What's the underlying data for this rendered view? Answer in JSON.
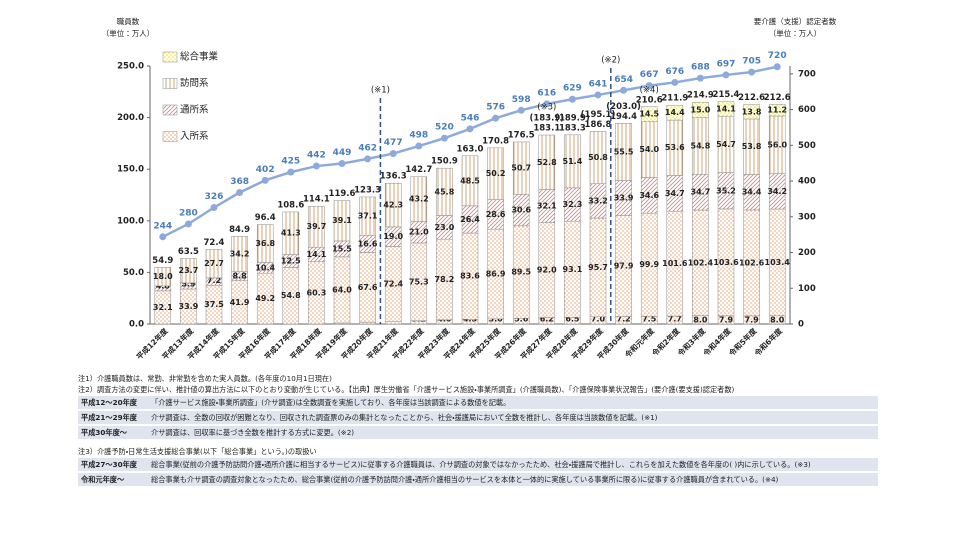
{
  "chart_data": {
    "type": "bar",
    "stacked": true,
    "y_label": "職員数\n（単位：万人）",
    "y2_label": "要介護（支援）認定者数\n（単位：万人）",
    "categories": [
      "平成12年度",
      "平成13年度",
      "平成14年度",
      "平成15年度",
      "平成16年度",
      "平成17年度",
      "平成18年度",
      "平成19年度",
      "平成20年度",
      "平成21年度",
      "平成22年度",
      "平成23年度",
      "平成24年度",
      "平成25年度",
      "平成26年度",
      "平成27年度",
      "平成28年度",
      "平成29年度",
      "平成30年度",
      "令和元年度",
      "令和2年度",
      "令和3年度",
      "令和4年度",
      "令和5年度",
      "令和6年度"
    ],
    "ylim": [
      0,
      250
    ],
    "yticks": [
      {
        "value": 0,
        "label": "0.0"
      },
      {
        "value": 50,
        "label": "50.0"
      },
      {
        "value": 100,
        "label": "100.0"
      },
      {
        "value": 150,
        "label": "150.0"
      },
      {
        "value": 200,
        "label": "200.0"
      },
      {
        "value": 250,
        "label": "250.0"
      }
    ],
    "y2lim": [
      0,
      722
    ],
    "y2ticks": [
      0,
      100,
      200,
      300,
      400,
      500,
      600,
      700
    ],
    "series": [
      {
        "color": "#e8b48c",
        "pattern": "dots",
        "values": [
          null,
          null,
          null,
          null,
          null,
          null,
          null,
          1.0,
          1.8,
          2.7,
          3.2,
          4.0,
          4.5,
          5.0,
          5.6,
          6.2,
          6.5,
          7.0,
          7.2,
          7.5,
          7.7,
          8.0,
          7.9,
          7.9,
          8.0
        ],
        "value_labels": [
          null,
          null,
          null,
          null,
          null,
          null,
          null,
          "1.0",
          "1.8",
          "2.7",
          "3.2",
          "4.0",
          "4.5",
          "5.0",
          "5.6",
          "6.2",
          "6.5",
          "7.0",
          "7.2",
          "7.5",
          "7.7",
          "8.0",
          "7.9",
          "7.9",
          "8.0"
        ]
      },
      {
        "name": "入所系",
        "color": "#f0a46c",
        "pattern": "dots",
        "values": [
          32.1,
          33.9,
          37.5,
          41.9,
          49.2,
          54.8,
          60.3,
          64.0,
          67.6,
          72.4,
          75.3,
          78.2,
          83.6,
          86.9,
          89.5,
          92.0,
          93.1,
          95.7,
          97.9,
          99.9,
          101.6,
          102.4,
          103.6,
          102.6,
          103.4
        ],
        "value_labels": [
          "32.1",
          "33.9",
          "37.5",
          "41.9",
          "49.2",
          "54.8",
          "60.3",
          "64.0",
          "67.6",
          "72.4",
          "75.3",
          "78.2",
          "83.6",
          "86.9",
          "89.5",
          "92.0",
          "93.1",
          "95.7",
          "97.9",
          "99.9",
          "101.6",
          "102.4",
          "103.6",
          "102.6",
          "103.4"
        ]
      },
      {
        "name": "通所系",
        "color": "#c98f8f",
        "pattern": "diagonal",
        "values": [
          4.8,
          5.9,
          7.2,
          8.8,
          10.4,
          12.5,
          14.1,
          15.5,
          16.6,
          19.0,
          21.0,
          23.0,
          26.4,
          28.6,
          30.6,
          32.1,
          32.3,
          33.2,
          33.9,
          34.6,
          34.7,
          34.7,
          35.2,
          34.4,
          34.2
        ],
        "value_labels": [
          "4.8",
          "5.9",
          "7.2",
          "8.8",
          "10.4",
          "12.5",
          "14.1",
          "15.5",
          "16.6",
          "19.0",
          "21.0",
          "23.0",
          "26.4",
          "28.6",
          "30.6",
          "32.1",
          "32.3",
          "33.2",
          "33.9",
          "34.6",
          "34.7",
          "34.7",
          "35.2",
          "34.4",
          "34.2"
        ]
      },
      {
        "name": "訪問系",
        "color": "#d4a574",
        "pattern": "vertical",
        "values": [
          18.0,
          23.7,
          27.7,
          34.2,
          36.8,
          41.3,
          39.7,
          39.1,
          37.1,
          42.3,
          43.2,
          45.8,
          48.5,
          50.2,
          50.7,
          52.8,
          51.4,
          50.8,
          55.5,
          54.0,
          53.6,
          54.8,
          54.7,
          53.8,
          56.0
        ],
        "value_labels": [
          "18.0",
          "23.7",
          "27.7",
          "34.2",
          "36.8",
          "41.3",
          "39.7",
          "39.1",
          "37.1",
          "42.3",
          "43.2",
          "45.8",
          "48.5",
          "50.2",
          "50.7",
          "52.8",
          "51.4",
          "50.8",
          "55.5",
          "54.0",
          "53.6",
          "54.8",
          "54.7",
          "53.8",
          "56.0"
        ]
      },
      {
        "name": "総合事業",
        "color": "#f2e600",
        "pattern": "dots",
        "values": [
          null,
          null,
          null,
          null,
          null,
          null,
          null,
          null,
          null,
          null,
          null,
          null,
          null,
          null,
          null,
          null,
          null,
          null,
          null,
          14.5,
          14.4,
          15.0,
          14.1,
          13.8,
          11.2
        ],
        "value_labels": [
          null,
          null,
          null,
          null,
          null,
          null,
          null,
          null,
          null,
          null,
          null,
          null,
          null,
          null,
          null,
          null,
          null,
          null,
          null,
          "14.5",
          "14.4",
          "15.0",
          "14.1",
          "13.8",
          "11.2"
        ]
      }
    ],
    "totals": {
      "values": [
        54.9,
        63.5,
        72.4,
        84.9,
        96.4,
        108.6,
        114.1,
        119.6,
        123.3,
        136.3,
        142.7,
        150.9,
        163.0,
        170.8,
        176.5,
        183.1,
        183.3,
        186.8,
        194.4,
        210.6,
        211.9,
        214.9,
        215.4,
        212.6,
        212.6
      ],
      "value_labels": [
        "54.9",
        "63.5",
        "72.4",
        "84.9",
        "96.4",
        "108.6",
        "114.1",
        "119.6",
        "123.3",
        "136.3",
        "142.7",
        "150.9",
        "163.0",
        "170.8",
        "176.5",
        "183.1",
        "183.3",
        "186.8",
        "194.4",
        "210.6",
        "211.9",
        "214.9",
        "215.4",
        "212.6",
        "212.6"
      ]
    },
    "adjusted_totals": {
      "values": [
        null,
        null,
        null,
        null,
        null,
        null,
        null,
        null,
        null,
        null,
        null,
        null,
        null,
        null,
        null,
        183.9,
        189.9,
        195.1,
        203.0,
        null,
        null,
        null,
        null,
        null,
        null
      ],
      "value_labels": [
        null,
        null,
        null,
        null,
        null,
        null,
        null,
        null,
        null,
        null,
        null,
        null,
        null,
        null,
        null,
        "(183.9)",
        "(189.9)",
        "(195.1)",
        "(203.0)",
        null,
        null,
        null,
        null,
        null,
        null
      ]
    },
    "line": {
      "type": "line",
      "axis": "y2",
      "color": "#8eaadb",
      "label_color": "#4a7ebb",
      "values": [
        244,
        280,
        326,
        368,
        402,
        425,
        442,
        449,
        462,
        477,
        498,
        520,
        546,
        576,
        598,
        616,
        629,
        641,
        654,
        667,
        676,
        688,
        697,
        705,
        720
      ]
    },
    "dividers": [
      {
        "label": "(※1)",
        "before": "平成21年度"
      },
      {
        "label": "(※2)",
        "before": "平成30年度"
      }
    ],
    "markers": [
      {
        "label": "(※3)",
        "at": "平成27年度"
      },
      {
        "label": "(※4)",
        "at": "令和元年度"
      }
    ],
    "legend": "top-left"
  },
  "notes": {
    "note1": "注1）介護職員数は、常勤、非常勤を含めた実人員数。(各年度の10月1日現在)",
    "note2": "注2）調査方法の変更に伴い、推計値の算出方法に以下のとおり変動が生じている。【出典】厚生労働省「介護サービス施設・事業所調査」(介護職員数)、「介護保険事業状況報告」(要介護(要支援)認定者数)",
    "table1": [
      [
        "平成12～20年度",
        "「介護サービス施設・事業所調査」(介サ調査)は全数調査を実施しており、各年度は当該調査による数値を記載。"
      ],
      [
        "平成21～29年度",
        "介サ調査は、全数の回収が困難となり、回収された調査票のみの集計となったことから、社会・援護局において全数を推計し、各年度は当該数値を記載。(※1)"
      ],
      [
        "平成30年度～",
        "介サ調査は、回収率に基づき全数を推計する方式に変更。(※2)"
      ]
    ],
    "note3": "注3）介護予防・日常生活支援総合事業(以下「総合事業」という。)の取扱い",
    "table2": [
      [
        "平成27～30年度",
        "総合事業(従前の介護予防訪問介護・通所介護に相当するサービス)に従事する介護職員は、介サ調査の対象ではなかったため、社会・援護局で推計し、これらを加えた数値を各年度の( )内に示している。(※3)"
      ],
      [
        "令和元年度～",
        "総合事業も介サ調査の調査対象となったため、総合事業(従前の介護予防訪問介護・通所介護相当のサービスを本体と一体的に実施している事業所に限る)に従事する介護職員が含まれている。(※4)"
      ]
    ]
  }
}
